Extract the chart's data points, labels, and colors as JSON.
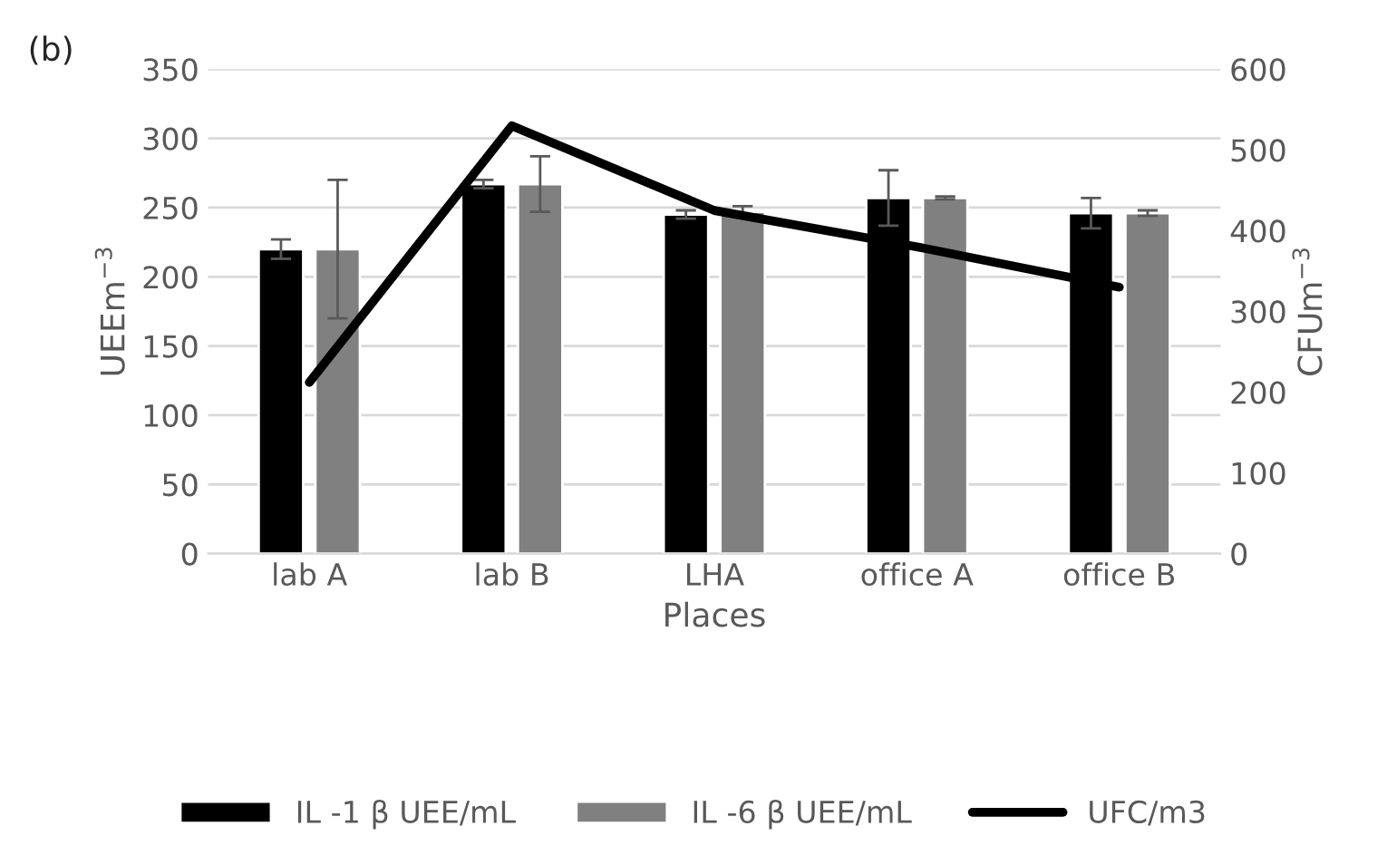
{
  "chart_data": {
    "type": "bar",
    "annotations": [
      "(b)"
    ],
    "xlabel": "Places",
    "ylabel": "UEEm$^{−3}$",
    "y2label": "CFUm$^{−3}$",
    "categories": [
      "lab A",
      "lab B",
      "LHA",
      "office A",
      "office B"
    ],
    "series": [
      {
        "name": "IL -1 β UEE/mL",
        "color": "#000000",
        "values": [
          220,
          267,
          245,
          257,
          246
        ],
        "errors": [
          7,
          3,
          3,
          20,
          11
        ]
      },
      {
        "name": "IL -6 β UEE/mL",
        "color": "#808080",
        "values": [
          220,
          267,
          247,
          257,
          246
        ],
        "errors": [
          50,
          20,
          4,
          1,
          2
        ]
      },
      {
        "name": "UFC/m3",
        "type": "line",
        "axis": "y2",
        "color": "#000000",
        "values": [
          212,
          530,
          425,
          380,
          330
        ]
      }
    ],
    "ylim": [
      0,
      350
    ],
    "yticks": [
      0,
      50,
      100,
      150,
      200,
      250,
      300,
      350
    ],
    "y2lim": [
      0,
      600
    ],
    "y2ticks": [
      0,
      100,
      200,
      300,
      400,
      500,
      600
    ],
    "grid": "y",
    "legend": "bottom"
  }
}
